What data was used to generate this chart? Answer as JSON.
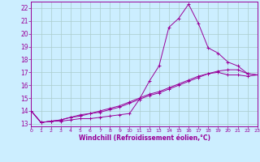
{
  "xlabel": "Windchill (Refroidissement éolien,°C)",
  "xlim": [
    0,
    23
  ],
  "ylim": [
    12.8,
    22.5
  ],
  "xticks": [
    0,
    1,
    2,
    3,
    4,
    5,
    6,
    7,
    8,
    9,
    10,
    11,
    12,
    13,
    14,
    15,
    16,
    17,
    18,
    19,
    20,
    21,
    22,
    23
  ],
  "yticks": [
    13,
    14,
    15,
    16,
    17,
    18,
    19,
    20,
    21,
    22
  ],
  "bg_color": "#cceeff",
  "line_color": "#990099",
  "grid_color": "#aacccc",
  "line1_x": [
    0,
    1,
    2,
    3,
    4,
    5,
    6,
    7,
    8,
    9,
    10,
    11,
    12,
    13,
    14,
    15,
    16,
    17,
    18,
    19,
    20,
    21,
    22,
    23
  ],
  "line1_y": [
    14.0,
    13.1,
    13.2,
    13.2,
    13.3,
    13.4,
    13.4,
    13.5,
    13.6,
    13.7,
    13.8,
    14.9,
    16.3,
    17.5,
    20.5,
    21.2,
    22.3,
    20.8,
    18.9,
    18.5,
    17.8,
    17.5,
    16.9,
    16.8
  ],
  "line2_x": [
    0,
    1,
    2,
    3,
    4,
    5,
    6,
    7,
    8,
    9,
    10,
    11,
    12,
    13,
    14,
    15,
    16,
    17,
    18,
    19,
    20,
    21,
    22,
    23
  ],
  "line2_y": [
    14.0,
    13.1,
    13.2,
    13.3,
    13.5,
    13.7,
    13.8,
    13.9,
    14.1,
    14.3,
    14.6,
    14.9,
    15.2,
    15.4,
    15.7,
    16.0,
    16.3,
    16.6,
    16.9,
    17.1,
    17.2,
    17.2,
    16.9,
    16.8
  ],
  "line3_x": [
    0,
    1,
    2,
    3,
    4,
    5,
    6,
    7,
    8,
    9,
    10,
    11,
    12,
    13,
    14,
    15,
    16,
    17,
    18,
    19,
    20,
    21,
    22,
    23
  ],
  "line3_y": [
    14.0,
    13.1,
    13.2,
    13.3,
    13.5,
    13.6,
    13.8,
    14.0,
    14.2,
    14.4,
    14.7,
    15.0,
    15.3,
    15.5,
    15.8,
    16.1,
    16.4,
    16.7,
    16.9,
    17.0,
    16.8,
    16.8,
    16.7,
    16.8
  ],
  "xtick_fontsize": 4.5,
  "ytick_fontsize": 5.5,
  "xlabel_fontsize": 5.5,
  "lw": 0.7,
  "ms": 2.5
}
